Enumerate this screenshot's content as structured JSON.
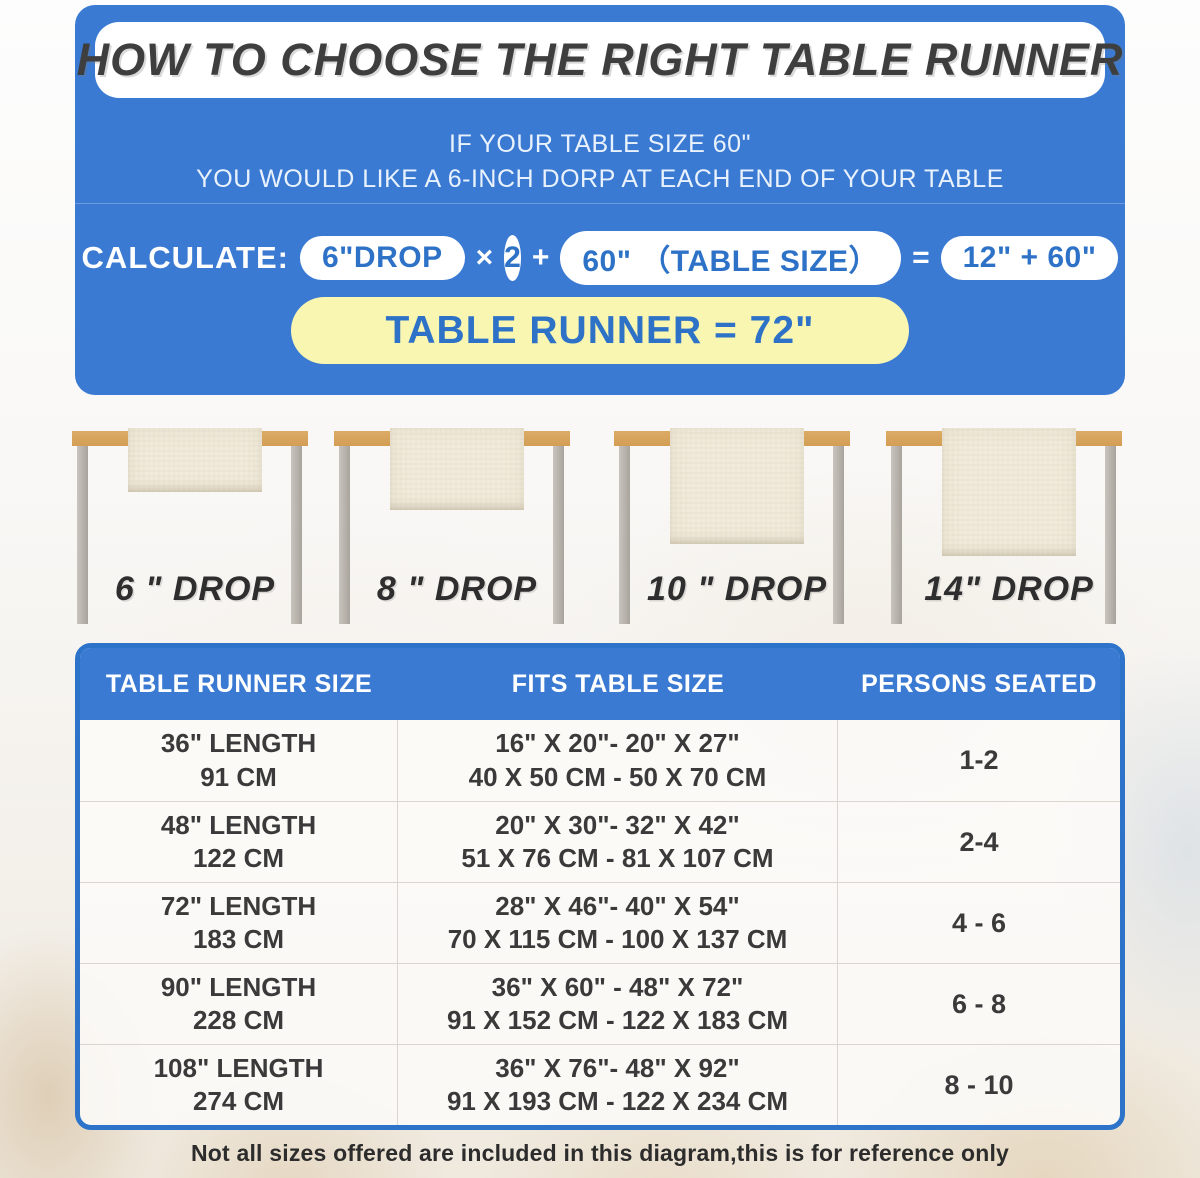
{
  "colors": {
    "banner_blue": "#3a7ad3",
    "accent_blue_text": "#2e72c8",
    "chart_border_blue": "#2c73c9",
    "result_yellow": "#f9f6b1",
    "title_gray": "#3e3e3e",
    "tabletop_tan": "#d8a55e",
    "leg_gray": "#b7b1aa",
    "runner_cream": "#f1ebdc"
  },
  "banner": {
    "title": "HOW TO CHOOSE THE RIGHT TABLE RUNNER",
    "subtitle_line1": "IF YOUR TABLE SIZE 60\"",
    "subtitle_line2": "YOU WOULD LIKE A 6-INCH DORP AT EACH END OF YOUR TABLE",
    "calculate_label": "CALCULATE:",
    "calc_drop_pill": "6\"DROP",
    "calc_times": "×",
    "calc_multiplier": "2",
    "calc_plus": "+",
    "calc_table_size_pill": "60\" （TABLE SIZE）",
    "calc_equals": "=",
    "calc_sum_pill": "12\" + 60\"",
    "result_line": "TABLE RUNNER = 72\""
  },
  "drop_examples": [
    {
      "label": "6 \" DROP"
    },
    {
      "label": "8 \" DROP"
    },
    {
      "label": "10 \" DROP"
    },
    {
      "label": "14\" DROP"
    }
  ],
  "size_chart": {
    "headers": [
      "TABLE RUNNER SIZE",
      "FITS TABLE SIZE",
      "PERSONS SEATED"
    ],
    "rows": [
      {
        "size_in": "36\" LENGTH",
        "size_cm": "91 CM",
        "fits_in": "16\" X 20\"- 20\" X 27\"",
        "fits_cm": "40 X 50 CM - 50 X 70 CM",
        "persons": "1-2"
      },
      {
        "size_in": "48\" LENGTH",
        "size_cm": "122 CM",
        "fits_in": "20\" X 30\"- 32\" X 42\"",
        "fits_cm": "51 X 76 CM - 81 X 107 CM",
        "persons": "2-4"
      },
      {
        "size_in": "72\" LENGTH",
        "size_cm": "183 CM",
        "fits_in": "28\" X 46\"- 40\" X 54\"",
        "fits_cm": "70 X 115 CM - 100 X 137 CM",
        "persons": "4 - 6"
      },
      {
        "size_in": "90\" LENGTH",
        "size_cm": "228 CM",
        "fits_in": "36\" X 60\" - 48\" X 72\"",
        "fits_cm": "91 X 152 CM - 122 X 183 CM",
        "persons": "6 - 8"
      },
      {
        "size_in": "108\" LENGTH",
        "size_cm": "274 CM",
        "fits_in": "36\" X 76\"- 48\" X 92\"",
        "fits_cm": "91 X 193 CM - 122 X 234 CM",
        "persons": "8 - 10"
      }
    ]
  },
  "footer_note": "Not all sizes offered are included in this diagram,this is for reference only"
}
